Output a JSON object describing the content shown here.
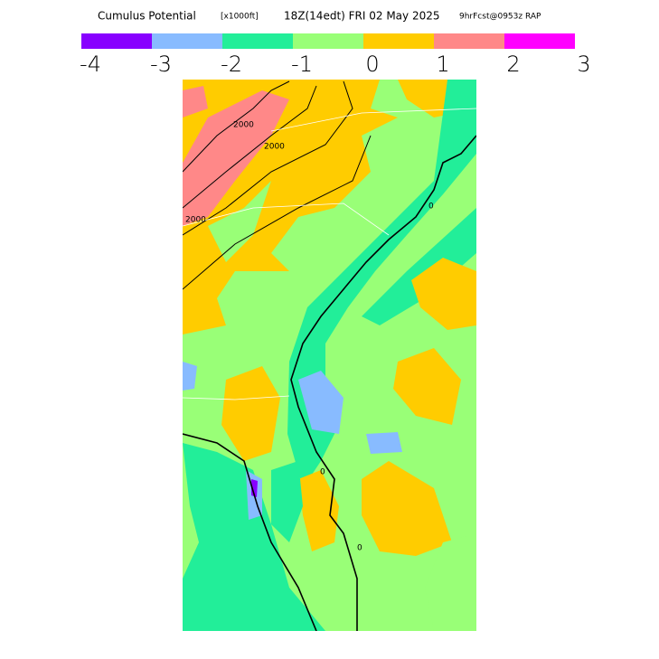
{
  "header": {
    "title": "Cumulus Potential",
    "units": "[x1000ft]",
    "valid": "18Z(14edt) FRI 02 May 2025",
    "forecast": "9hrFcst@0953z RAP"
  },
  "colorbar": {
    "colors": [
      "#8800ff",
      "#88bbff",
      "#22ee99",
      "#99ff77",
      "#ffcc00",
      "#ff8888",
      "#ff00ff"
    ],
    "ticks": [
      -4,
      -3,
      -2,
      -1,
      0,
      1,
      2,
      3
    ]
  },
  "contour_labels": [
    "2000",
    "2000",
    "2000",
    "0",
    "0",
    "0"
  ]
}
